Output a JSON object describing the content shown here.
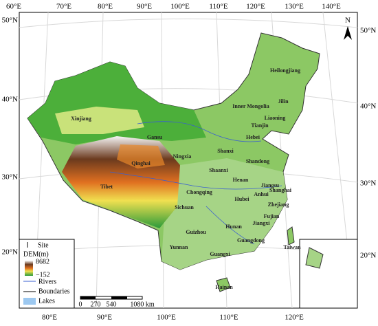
{
  "map": {
    "top_labels": [
      "60°E",
      "70°E",
      "80°E",
      "90°E",
      "100°E",
      "110°E",
      "120°E",
      "130°E",
      "140°E"
    ],
    "bottom_labels": [
      "80°E",
      "90°E",
      "100°E",
      "110°E",
      "120°E"
    ],
    "left_labels": [
      "50°N",
      "40°N",
      "30°N",
      "20°N"
    ],
    "right_labels": [
      "50°N",
      "40°N",
      "30°N",
      "20°N"
    ],
    "north": "N",
    "regions": [
      "Xinjiang",
      "Tibet",
      "Qinghai",
      "Gansu",
      "Ningxia",
      "Shaanxi",
      "Shanxi",
      "Hebei",
      "Tianjin",
      "Inner Mongolia",
      "Heilongjiang",
      "Jilin",
      "Liaoning",
      "Shandong",
      "Henan",
      "Hubei",
      "Anhui",
      "Jiangsu",
      "Shanghai",
      "Zhejiang",
      "Sichuan",
      "Chongqing",
      "Guizhou",
      "Yunnan",
      "Guangxi",
      "Guangdong",
      "Hunan",
      "Jiangxi",
      "Fujian",
      "Taiwan",
      "Hainan"
    ],
    "legend": {
      "site": "Site",
      "dem": "DEM(m)",
      "dem_max": "8682",
      "dem_min": "−152",
      "rivers": "Rivers",
      "boundaries": "Boundaries",
      "lakes": "Lakes"
    },
    "scale": [
      "0",
      "270",
      "540",
      "1080 km"
    ]
  }
}
